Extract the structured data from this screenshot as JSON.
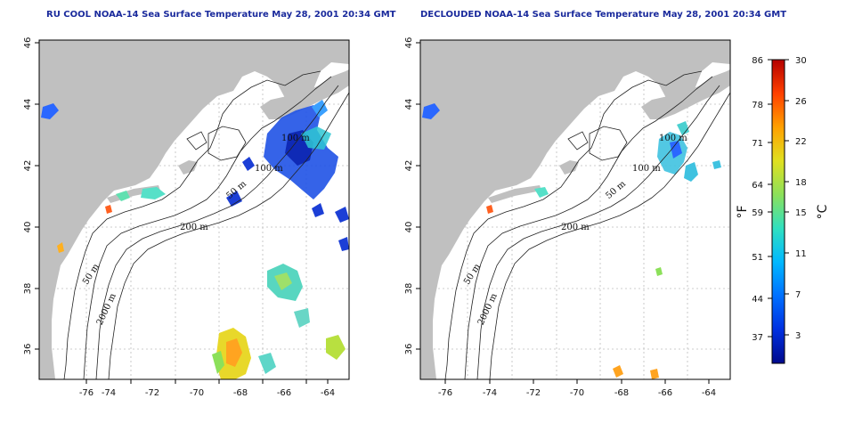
{
  "panels": [
    {
      "title": "RU COOL NOAA-14 Sea Surface Temperature May 28, 2001 20:34 GMT",
      "contour_labels": [
        "100 m",
        "100 m",
        "50 m",
        "200 m",
        "50 m",
        "2000 m"
      ]
    },
    {
      "title": "DECLOUDED NOAA-14 Sea Surface Temperature May 28, 2001 20:34 GMT",
      "contour_labels": [
        "100 m",
        "100 m",
        "50 m",
        "200 m",
        "50 m",
        "2000 m"
      ]
    }
  ],
  "axes": {
    "x_ticks": [
      "-76",
      "-74",
      "-72",
      "-70",
      "-68",
      "-66",
      "-64"
    ],
    "y_ticks": [
      "46",
      "44",
      "42",
      "40",
      "38",
      "36"
    ]
  },
  "colorbar": {
    "left_unit": "°F",
    "right_unit": "°C",
    "fahrenheit_ticks": [
      "86",
      "78",
      "71",
      "64",
      "59",
      "51",
      "44",
      "37"
    ],
    "celsius_ticks": [
      "30",
      "26",
      "22",
      "18",
      "15",
      "11",
      "7",
      "3"
    ],
    "colors": [
      "#000a8c",
      "#0030e0",
      "#0070ff",
      "#00b8ff",
      "#30e0c0",
      "#8ce05a",
      "#e0e020",
      "#ffa000",
      "#ff4000",
      "#b40000"
    ]
  },
  "map_colors": {
    "land": "#c0c0c0",
    "water": "#ffffff",
    "grid": "#bdbdbd",
    "contour": "#222222"
  }
}
